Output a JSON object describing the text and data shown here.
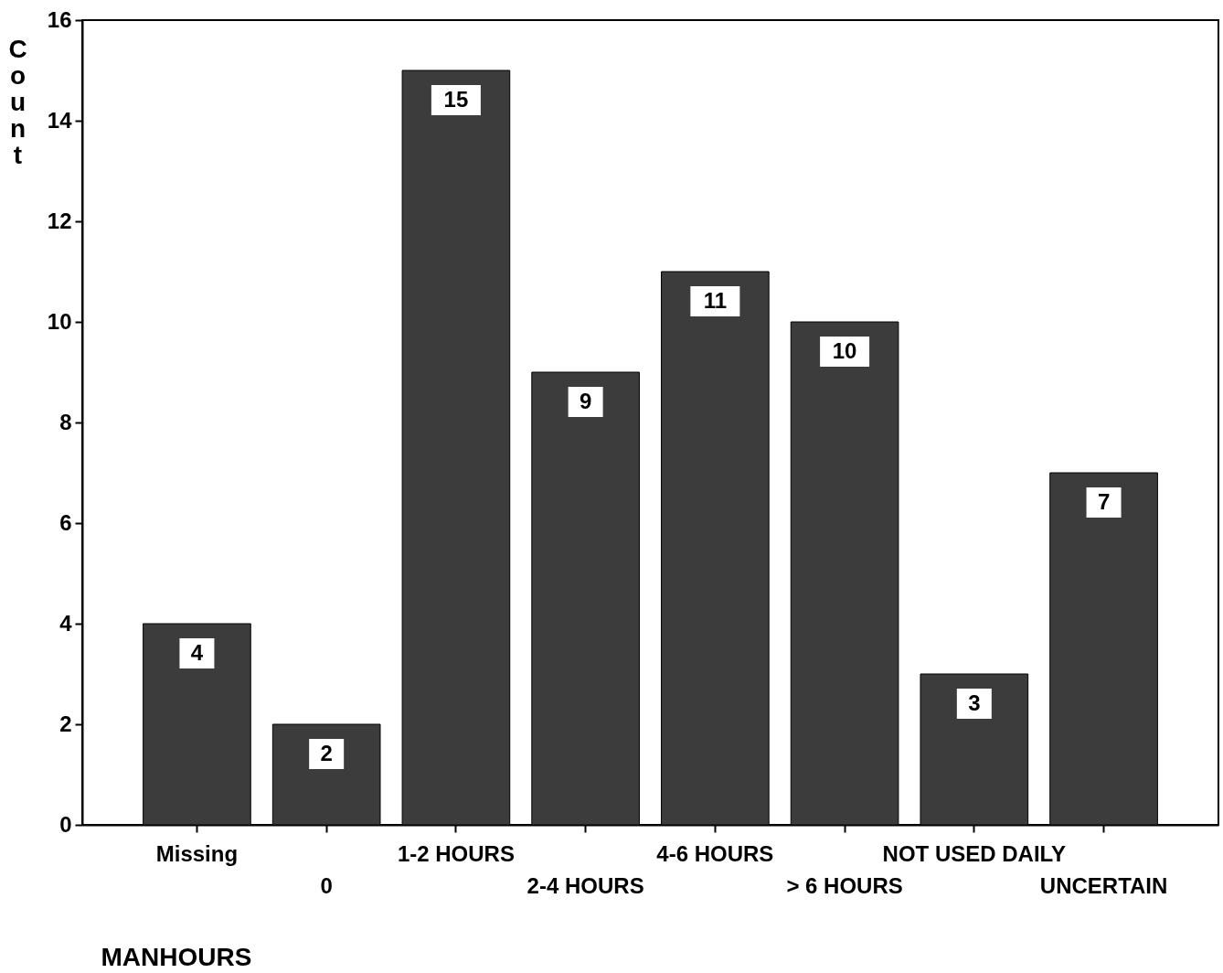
{
  "chart_data": {
    "type": "bar",
    "xlabel": "MANHOURS",
    "ylabel": "Count",
    "categories": [
      "Missing",
      "0",
      "1-2 HOURS",
      "2-4 HOURS",
      "4-6 HOURS",
      "> 6 HOURS",
      "NOT USED DAILY",
      "UNCERTAIN"
    ],
    "values": [
      4,
      2,
      15,
      9,
      11,
      10,
      3,
      7
    ],
    "color": "#3c3c3c",
    "ylim": [
      0,
      16
    ],
    "yticks": [
      0,
      2,
      4,
      6,
      8,
      10,
      12,
      14,
      16
    ],
    "data_labels": true
  }
}
